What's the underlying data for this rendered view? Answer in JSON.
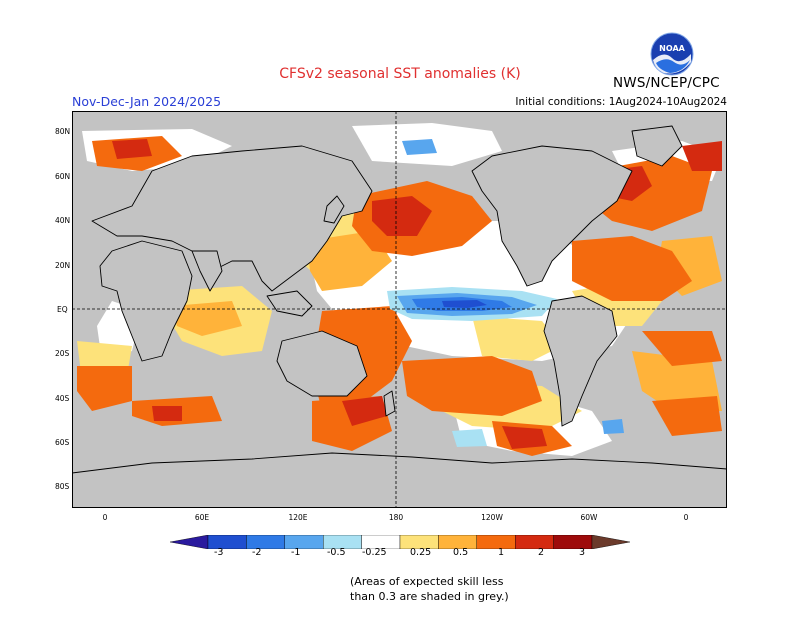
{
  "title": "CFSv2 seasonal SST anomalies (K)",
  "season": "Nov-Dec-Jan 2024/2025",
  "initial_conditions": "Initial conditions: 1Aug2024-10Aug2024",
  "agency": "NWS/NCEP/CPC",
  "logo_text": "NOAA",
  "lat_labels": [
    "80N",
    "60N",
    "40N",
    "20N",
    "EQ",
    "20S",
    "40S",
    "60S",
    "80S"
  ],
  "lon_labels": [
    "0",
    "60E",
    "120E",
    "180",
    "120W",
    "60W",
    "0"
  ],
  "colorbar": {
    "labels": [
      "-3",
      "-2",
      "-1",
      "-0.5",
      "-0.25",
      "0.25",
      "0.5",
      "1",
      "2",
      "3"
    ],
    "colors": [
      "#2a1a9e",
      "#1f4fd0",
      "#2f7ae6",
      "#58a6ee",
      "#a9e1f3",
      "#ffffff",
      "#fde27a",
      "#ffb33a",
      "#f46a0e",
      "#d42a10",
      "#9e0b0b",
      "#6b3a2b"
    ]
  },
  "note_line1": "(Areas of expected skill less",
  "note_line2": "than 0.3 are shaded in grey.)"
}
